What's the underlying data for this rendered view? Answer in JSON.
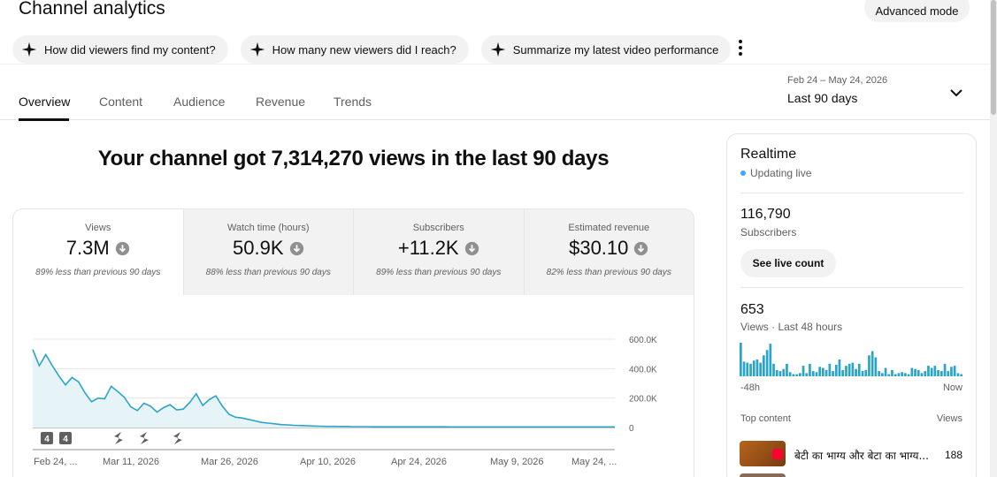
{
  "header": {
    "title": "Channel analytics",
    "advanced_mode_label": "Advanced mode"
  },
  "chips": [
    {
      "label": "How did viewers find my content?",
      "icon": "sparkle-icon"
    },
    {
      "label": "How many new viewers did I reach?",
      "icon": "sparkle-icon"
    },
    {
      "label": "Summarize my latest video performance",
      "icon": "sparkle-icon"
    }
  ],
  "tabs": [
    {
      "label": "Overview",
      "active": true
    },
    {
      "label": "Content"
    },
    {
      "label": "Audience"
    },
    {
      "label": "Revenue"
    },
    {
      "label": "Trends"
    }
  ],
  "date_range": {
    "range": "Feb 24 – May 24, 2026",
    "label": "Last 90 days"
  },
  "headline": "Your channel got 7,314,270 views in the last 90 days",
  "metrics": [
    {
      "label": "Views",
      "value": "7.3M",
      "note": "89% less than previous 90 days"
    },
    {
      "label": "Watch time (hours)",
      "value": "50.9K",
      "note": "88% less than previous 90 days"
    },
    {
      "label": "Subscribers",
      "value": "+11.2K",
      "note": "89% less than previous 90 days"
    },
    {
      "label": "Estimated revenue",
      "value": "$30.10",
      "note": "82% less than previous 90 days"
    }
  ],
  "chart_data": {
    "type": "area",
    "title": "",
    "y_ticks": [
      "600.0K",
      "400.0K",
      "200.0K",
      "0"
    ],
    "ylim": [
      0,
      600000
    ],
    "x_ticks": [
      "Feb 24, ...",
      "Mar 11, 2026",
      "Mar 26, 2026",
      "Apr 10, 2026",
      "Apr 24, 2026",
      "May 9, 2026",
      "May 24, ..."
    ],
    "grid": true,
    "accent_color": "#2ba4c8",
    "series": [
      {
        "values": [
          530000,
          420000,
          495000,
          420000,
          350000,
          290000,
          340000,
          310000,
          235000,
          175000,
          200000,
          195000,
          280000,
          245000,
          205000,
          140000,
          115000,
          165000,
          145000,
          105000,
          135000,
          155000,
          120000,
          125000,
          170000,
          230000,
          150000,
          190000,
          215000,
          145000,
          90000,
          70000,
          65000,
          55000,
          45000,
          35000,
          30000,
          25000,
          20000,
          18000,
          15000,
          14000,
          12000,
          10000,
          9000,
          8000,
          8000,
          7000,
          7000,
          6000,
          6000,
          6000,
          5000,
          5000,
          5000,
          5000,
          5000,
          5000,
          5000,
          5000,
          5000,
          5000,
          5000,
          5000,
          4000,
          4000,
          4000,
          4000,
          4000,
          4000,
          4000,
          4000,
          4000,
          4000,
          4000,
          4000,
          4000,
          4000,
          4000,
          4000,
          4000,
          4000,
          4000,
          4000,
          4000,
          4000,
          4000,
          4000,
          4000,
          4000
        ]
      }
    ],
    "markers": [
      {
        "label": "4",
        "type": "number"
      },
      {
        "label": "4",
        "type": "number"
      },
      {
        "type": "shorts-icon"
      },
      {
        "type": "shorts-icon"
      },
      {
        "type": "shorts-icon"
      }
    ]
  },
  "realtime": {
    "title": "Realtime",
    "status": "Updating live",
    "subscribers_value": "116,790",
    "subscribers_label": "Subscribers",
    "live_button": "See live count",
    "views_value": "653",
    "views_label": "Views · Last 48 hours",
    "bar_values": [
      32,
      14,
      13,
      12,
      15,
      16,
      13,
      20,
      25,
      31,
      12,
      6,
      5,
      7,
      12,
      4,
      2,
      2,
      3,
      10,
      3,
      12,
      5,
      4,
      9,
      8,
      6,
      12,
      5,
      11,
      16,
      6,
      10,
      12,
      13,
      7,
      12,
      5,
      6,
      20,
      24,
      18,
      5,
      3,
      8,
      2,
      6,
      2,
      3,
      4,
      3,
      2,
      8,
      7,
      6,
      3,
      5,
      10,
      8,
      10,
      6,
      5,
      12,
      5,
      9,
      10,
      3,
      2
    ],
    "start_label": "-48h",
    "end_label": "Now",
    "top_content_label": "Top content",
    "views_header": "Views",
    "top_item": {
      "title": "बेटी का भाग्य और बेटा का भाग्य...",
      "views": "188"
    }
  }
}
